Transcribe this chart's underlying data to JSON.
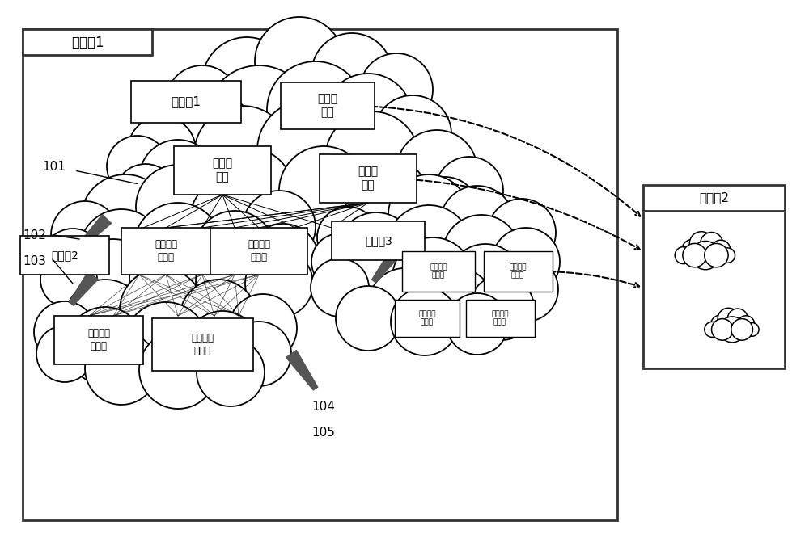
{
  "bg_color": "#ffffff",
  "cloud_env1_label": "云环境1",
  "cloud_env2_label": "云环境2",
  "avail_zone1_label": "可用域1",
  "avail_zone2_label": "可用域2",
  "avail_zone3_label": "可用域3",
  "top_scheduler_label": "顶级调\n度器",
  "backup_domain_label": "备用域级\n调度器",
  "main_domain_label": "主用域级\n调度器",
  "backup_group_label": "备用组级\n调度器",
  "main_group_label": "主用组级\n调度器",
  "backup_domain2_label": "备用域级\n调度器",
  "main_domain2_label": "主用域级\n调度器",
  "backup_group2_label": "备用组级\n调度器",
  "main_group2_label": "主用组级\n调度器",
  "ref_labels": [
    "101",
    "102",
    "103",
    "104",
    "105"
  ]
}
